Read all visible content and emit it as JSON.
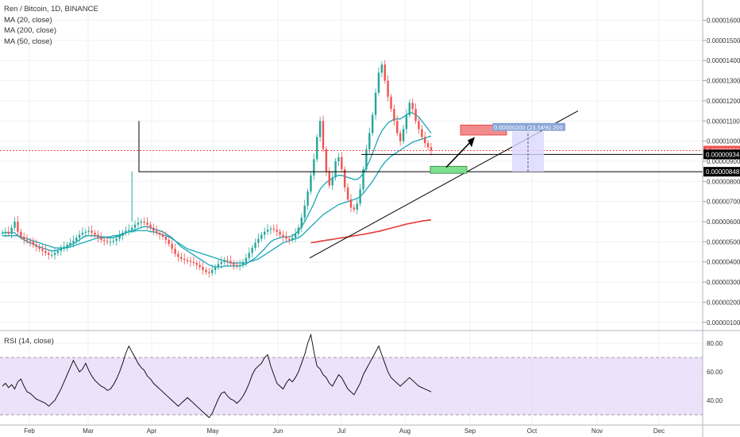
{
  "legend": {
    "symbol": "Ren / Bitcoin, 1D, BINANCE",
    "ma20": "MA (20, close)",
    "ma200": "MA (200, close)",
    "ma50": "MA (50, close)"
  },
  "rsi_label": "RSI (14, close)",
  "colors": {
    "up": "#26a69a",
    "down": "#ef5350",
    "ma20": "#1aa7b8",
    "ma50": "#1aa7b8",
    "ma200": "#e53935",
    "rsi": "#000000",
    "rsi_band": "#e4d5f7",
    "tp_box": "#f28b8b",
    "sl_box": "#7ee08f",
    "measure_box": "#dcd7ff",
    "measure_label_bg": "#8aa6d6"
  },
  "chart_data": [
    {
      "type": "candlestick",
      "title": "Ren / Bitcoin, 1D, BINANCE",
      "x_ticks": [
        "Feb",
        "Mar",
        "Apr",
        "May",
        "Jun",
        "Jul",
        "Aug",
        "Sep",
        "Oct",
        "Nov",
        "Dec"
      ],
      "y_ticks": [
        "0.00001600",
        "0.00001500",
        "0.00001400",
        "0.00001300",
        "0.00001200",
        "0.00001100",
        "0.00001000",
        "0.00000900",
        "0.00000800",
        "0.00000700",
        "0.00000600",
        "0.00000500",
        "0.00000400",
        "0.00000300",
        "0.00000200",
        "0.00000100"
      ],
      "ylim": [
        1e-07,
        1.6e-06
      ],
      "price_labels": {
        "current": "0.00000953",
        "level_1": "0.00000934",
        "level_2": "0.00000848"
      },
      "levels": {
        "current": 9.53,
        "level_1": 9.34,
        "level_2": 8.48
      },
      "measure_label": "0.00000200 (23.54%) 200",
      "closes": [
        5.45,
        5.5,
        5.4,
        5.7,
        6.0,
        5.5,
        5.25,
        5.1,
        5.05,
        5.0,
        4.85,
        4.75,
        4.65,
        4.55,
        4.45,
        4.35,
        4.35,
        4.45,
        4.55,
        4.65,
        4.75,
        4.85,
        4.95,
        5.05,
        5.2,
        5.35,
        5.45,
        5.5,
        5.55,
        5.45,
        5.35,
        5.2,
        5.1,
        5.05,
        5.0,
        5.0,
        5.05,
        5.15,
        5.3,
        5.45,
        5.55,
        5.6,
        5.7,
        5.85,
        5.95,
        6.0,
        5.95,
        5.85,
        5.7,
        5.55,
        5.45,
        5.35,
        5.25,
        5.1,
        4.9,
        4.65,
        4.4,
        4.25,
        4.15,
        4.1,
        4.05,
        4.0,
        3.95,
        3.85,
        3.75,
        3.6,
        3.5,
        3.45,
        3.6,
        3.75,
        3.9,
        4.0,
        4.1,
        4.05,
        3.95,
        3.85,
        3.8,
        3.85,
        4.0,
        4.2,
        4.45,
        4.7,
        4.95,
        5.15,
        5.35,
        5.5,
        5.6,
        5.65,
        5.6,
        5.5,
        5.35,
        5.25,
        5.15,
        5.1,
        5.2,
        5.4,
        5.7,
        6.2,
        6.8,
        7.5,
        8.3,
        9.1,
        10.2,
        11.0,
        9.6,
        8.5,
        7.8,
        8.2,
        9.0,
        9.2,
        8.6,
        7.7,
        7.1,
        6.7,
        6.6,
        6.9,
        7.6,
        8.6,
        9.6,
        10.4,
        11.3,
        12.4,
        13.4,
        13.8,
        13.0,
        12.2,
        11.6,
        11.0,
        10.4,
        10.0,
        10.6,
        11.3,
        11.9,
        11.6,
        11.0,
        10.6,
        10.2,
        9.9,
        9.7,
        9.53
      ],
      "ma20": [
        5.45,
        5.45,
        5.45,
        5.45,
        5.45,
        5.3,
        5.2,
        5.1,
        5.0,
        4.95,
        4.9,
        4.8,
        4.75,
        4.7,
        4.65,
        4.6,
        4.55,
        4.55,
        4.6,
        4.65,
        4.7,
        4.75,
        4.85,
        4.9,
        5.0,
        5.1,
        5.2,
        5.3,
        5.3,
        5.3,
        5.3,
        5.3,
        5.25,
        5.25,
        5.2,
        5.2,
        5.2,
        5.25,
        5.3,
        5.35,
        5.45,
        5.5,
        5.55,
        5.6,
        5.65,
        5.7,
        5.75,
        5.75,
        5.7,
        5.65,
        5.6,
        5.55,
        5.5,
        5.4,
        5.3,
        5.2,
        5.05,
        4.9,
        4.75,
        4.65,
        4.55,
        4.45,
        4.35,
        4.25,
        4.15,
        4.05,
        3.95,
        3.85,
        3.8,
        3.75,
        3.75,
        3.75,
        3.8,
        3.8,
        3.8,
        3.8,
        3.8,
        3.8,
        3.85,
        3.9,
        4.0,
        4.1,
        4.2,
        4.35,
        4.5,
        4.65,
        4.85,
        5.0,
        5.1,
        5.15,
        5.2,
        5.25,
        5.25,
        5.25,
        5.3,
        5.4,
        5.55,
        5.75,
        6.0,
        6.3,
        6.6,
        6.9,
        7.3,
        7.6,
        7.8,
        7.95,
        8.05,
        8.15,
        8.25,
        8.3,
        8.3,
        8.25,
        8.2,
        8.15,
        8.1,
        8.1,
        8.2,
        8.4,
        8.7,
        9.0,
        9.4,
        9.8,
        10.2,
        10.5,
        10.7,
        10.9,
        11.0,
        11.1,
        11.1,
        11.1,
        11.2,
        11.3,
        11.4,
        11.4,
        11.3,
        11.2,
        11.0,
        10.8,
        10.6,
        10.4
      ],
      "ma50": [
        5.3,
        5.3,
        5.3,
        5.3,
        5.3,
        5.3,
        5.25,
        5.2,
        5.15,
        5.1,
        5.05,
        5.0,
        4.95,
        4.9,
        4.85,
        4.8,
        4.75,
        4.7,
        4.7,
        4.7,
        4.7,
        4.7,
        4.75,
        4.8,
        4.85,
        4.9,
        4.95,
        5.0,
        5.05,
        5.1,
        5.15,
        5.2,
        5.2,
        5.2,
        5.25,
        5.25,
        5.3,
        5.3,
        5.35,
        5.4,
        5.45,
        5.5,
        5.5,
        5.55,
        5.55,
        5.55,
        5.55,
        5.55,
        5.5,
        5.5,
        5.45,
        5.4,
        5.35,
        5.3,
        5.25,
        5.15,
        5.05,
        4.95,
        4.85,
        4.75,
        4.65,
        4.6,
        4.55,
        4.5,
        4.45,
        4.4,
        4.35,
        4.3,
        4.25,
        4.2,
        4.15,
        4.1,
        4.05,
        4.0,
        3.95,
        3.95,
        3.95,
        3.95,
        3.95,
        3.95,
        4.0,
        4.05,
        4.1,
        4.15,
        4.25,
        4.35,
        4.45,
        4.55,
        4.65,
        4.75,
        4.85,
        4.95,
        5.0,
        5.05,
        5.1,
        5.15,
        5.2,
        5.3,
        5.45,
        5.6,
        5.75,
        5.9,
        6.05,
        6.2,
        6.35,
        6.45,
        6.55,
        6.65,
        6.75,
        6.85,
        6.9,
        6.95,
        7.0,
        7.05,
        7.1,
        7.15,
        7.25,
        7.4,
        7.6,
        7.8,
        8.0,
        8.25,
        8.5,
        8.75,
        8.95,
        9.1,
        9.25,
        9.35,
        9.45,
        9.55,
        9.65,
        9.75,
        9.85,
        9.95,
        10.0,
        10.05,
        10.1,
        10.15,
        10.2,
        10.25
      ],
      "ma200": [
        null,
        null,
        null,
        null,
        null,
        null,
        null,
        null,
        null,
        null,
        null,
        null,
        null,
        null,
        null,
        null,
        null,
        null,
        null,
        null,
        null,
        null,
        null,
        null,
        null,
        null,
        null,
        null,
        null,
        null,
        null,
        null,
        null,
        null,
        null,
        null,
        null,
        null,
        null,
        null,
        null,
        null,
        null,
        null,
        null,
        null,
        null,
        null,
        null,
        null,
        null,
        null,
        null,
        null,
        null,
        null,
        null,
        null,
        null,
        null,
        null,
        null,
        null,
        null,
        null,
        null,
        null,
        null,
        null,
        null,
        null,
        null,
        null,
        null,
        null,
        null,
        null,
        null,
        null,
        null,
        null,
        null,
        null,
        null,
        null,
        null,
        null,
        null,
        null,
        null,
        null,
        null,
        null,
        null,
        null,
        null,
        null,
        null,
        null,
        null,
        4.95,
        4.98,
        5.0,
        5.03,
        5.05,
        5.08,
        5.1,
        5.12,
        5.15,
        5.17,
        5.2,
        5.22,
        5.25,
        5.27,
        5.3,
        5.32,
        5.35,
        5.37,
        5.4,
        5.43,
        5.46,
        5.49,
        5.52,
        5.56,
        5.6,
        5.64,
        5.68,
        5.72,
        5.76,
        5.8,
        5.84,
        5.88,
        5.91,
        5.94,
        5.97,
        6.0,
        6.03,
        6.05,
        6.07,
        6.09
      ]
    },
    {
      "type": "line",
      "title": "RSI (14, close)",
      "y_ticks": [
        "80.00",
        "60.00",
        "40.00"
      ],
      "ylim": [
        24,
        86
      ],
      "band": [
        30,
        70
      ],
      "values": [
        50,
        52,
        49,
        51,
        48,
        53,
        55,
        50,
        46,
        45,
        43,
        41,
        40,
        39,
        38,
        36,
        38,
        40,
        44,
        48,
        53,
        58,
        63,
        68,
        64,
        60,
        62,
        66,
        61,
        57,
        54,
        52,
        50,
        49,
        47,
        48,
        51,
        55,
        60,
        66,
        73,
        78,
        74,
        70,
        66,
        63,
        61,
        57,
        55,
        52,
        50,
        48,
        46,
        44,
        42,
        40,
        38,
        36,
        38,
        40,
        42,
        40,
        38,
        36,
        34,
        32,
        30,
        28,
        31,
        36,
        41,
        45,
        46,
        43,
        41,
        40,
        38,
        40,
        43,
        47,
        52,
        58,
        62,
        64,
        66,
        70,
        72,
        64,
        58,
        52,
        50,
        48,
        52,
        55,
        53,
        56,
        60,
        66,
        72,
        80,
        86,
        74,
        64,
        62,
        58,
        56,
        52,
        50,
        54,
        58,
        56,
        52,
        48,
        46,
        44,
        48,
        52,
        58,
        62,
        66,
        70,
        74,
        78,
        72,
        66,
        60,
        56,
        54,
        52,
        50,
        52,
        54,
        56,
        54,
        52,
        50,
        49,
        48,
        47,
        46
      ]
    }
  ]
}
